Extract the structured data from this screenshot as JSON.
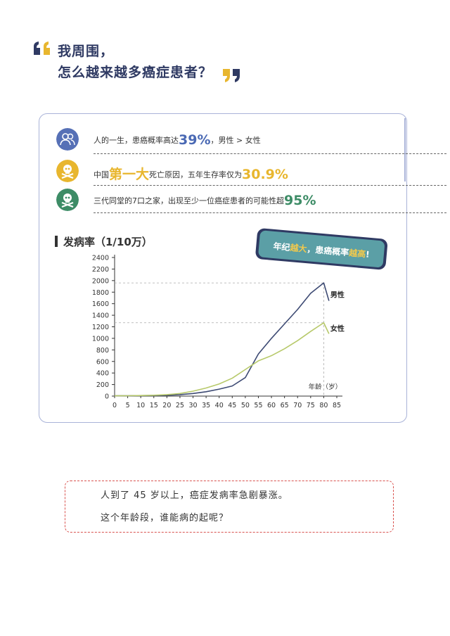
{
  "title": {
    "line1": "我周围，",
    "line2": "怎么越来越多癌症患者？"
  },
  "facts": [
    {
      "icon": "people-icon",
      "color": "#5670b6",
      "before": "人的一生，患癌概率高达",
      "highlight": "39%",
      "after": "，男性 > 女性"
    },
    {
      "icon": "skull-icon",
      "color": "#e8b62e",
      "before": "中国",
      "highlight": "第一大",
      "after": "死亡原因，五年生存率仅为",
      "highlight2": "30.9%"
    },
    {
      "icon": "skull-icon",
      "color": "#3d8c66",
      "before": "三代同堂的7口之家，出现至少一位癌症患者的可能性超",
      "highlight": "95%"
    }
  ],
  "banner": {
    "part1": "年纪",
    "part2": "越大",
    "part3": "，患癌概率",
    "part4": "越高",
    "part5": "!"
  },
  "chart_data": {
    "type": "line",
    "title": "发病率（1/10万）",
    "xlabel": "年龄（岁）",
    "ylabel": "",
    "x": [
      0,
      5,
      10,
      15,
      20,
      25,
      30,
      35,
      40,
      45,
      50,
      55,
      60,
      65,
      70,
      75,
      80,
      85
    ],
    "x_ticks": [
      "0",
      "5",
      "10",
      "15",
      "20",
      "25",
      "30",
      "35",
      "40",
      "45",
      "50",
      "55",
      "60",
      "65",
      "70",
      "75",
      "80",
      "85"
    ],
    "y_ticks": [
      "0",
      "200",
      "400",
      "600",
      "800",
      "1000",
      "1200",
      "1400",
      "1600",
      "1800",
      "2000",
      "2200",
      "2400"
    ],
    "ylim": [
      0,
      2400
    ],
    "xlim": [
      0,
      85
    ],
    "series": [
      {
        "name": "男性",
        "color": "#3d4a73",
        "x": [
          0,
          5,
          10,
          15,
          20,
          25,
          30,
          35,
          40,
          45,
          50,
          55,
          60,
          65,
          70,
          75,
          80,
          82
        ],
        "y": [
          5,
          5,
          8,
          10,
          15,
          25,
          45,
          75,
          120,
          175,
          320,
          730,
          1000,
          1250,
          1500,
          1780,
          1960,
          1650
        ]
      },
      {
        "name": "女性",
        "color": "#b7c96a",
        "x": [
          0,
          5,
          10,
          15,
          20,
          25,
          30,
          35,
          40,
          45,
          50,
          55,
          60,
          65,
          70,
          75,
          80,
          82
        ],
        "y": [
          5,
          6,
          10,
          15,
          25,
          45,
          85,
          140,
          210,
          310,
          460,
          610,
          700,
          820,
          960,
          1120,
          1270,
          1080
        ]
      }
    ],
    "reference_lines": [
      {
        "axis": "y",
        "value": 1960
      },
      {
        "axis": "y",
        "value": 1270
      },
      {
        "axis": "x",
        "value": 80
      }
    ],
    "grid": false
  },
  "note": {
    "line1": "人到了 45 岁以上，癌症发病率急剧暴涨。",
    "line2": "这个年龄段，谁能病的起呢？"
  }
}
